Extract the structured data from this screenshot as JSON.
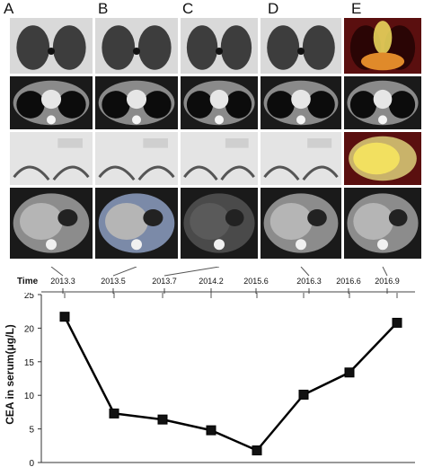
{
  "panel_labels": [
    "A",
    "B",
    "C",
    "D",
    "E"
  ],
  "scan_rows": [
    "lung-window-upper-chest",
    "mediastinal-window",
    "liver-bone-window",
    "liver-soft-tissue-window"
  ],
  "scan_colors": {
    "grayscale_bg": "#1a1a1a",
    "petct_bg": "#5a0f0f",
    "petct_hot": "#f2e060"
  },
  "timeline": {
    "label": "Time",
    "dates": [
      "2013.3",
      "2013.5",
      "2013.7",
      "2014.2",
      "2015.6",
      "2016.3",
      "2016.6",
      "2016.9"
    ]
  },
  "chart_data": {
    "type": "line",
    "categories": [
      "2013.3",
      "2013.5",
      "2013.7",
      "2014.2",
      "2015.6",
      "2016.3",
      "2016.6",
      "2016.9"
    ],
    "values": [
      21.7,
      7.3,
      6.4,
      4.8,
      1.8,
      10.1,
      13.4,
      20.8
    ],
    "ylabel": "CEA in serum(μg/L)",
    "ylim": [
      0,
      25
    ],
    "yticks": [
      0,
      5,
      10,
      15,
      20,
      25
    ],
    "ytick_labels": [
      "0",
      "5",
      "10",
      "15",
      "20",
      "25"
    ],
    "marker": "square",
    "line_color": "#000000",
    "grid": false
  }
}
